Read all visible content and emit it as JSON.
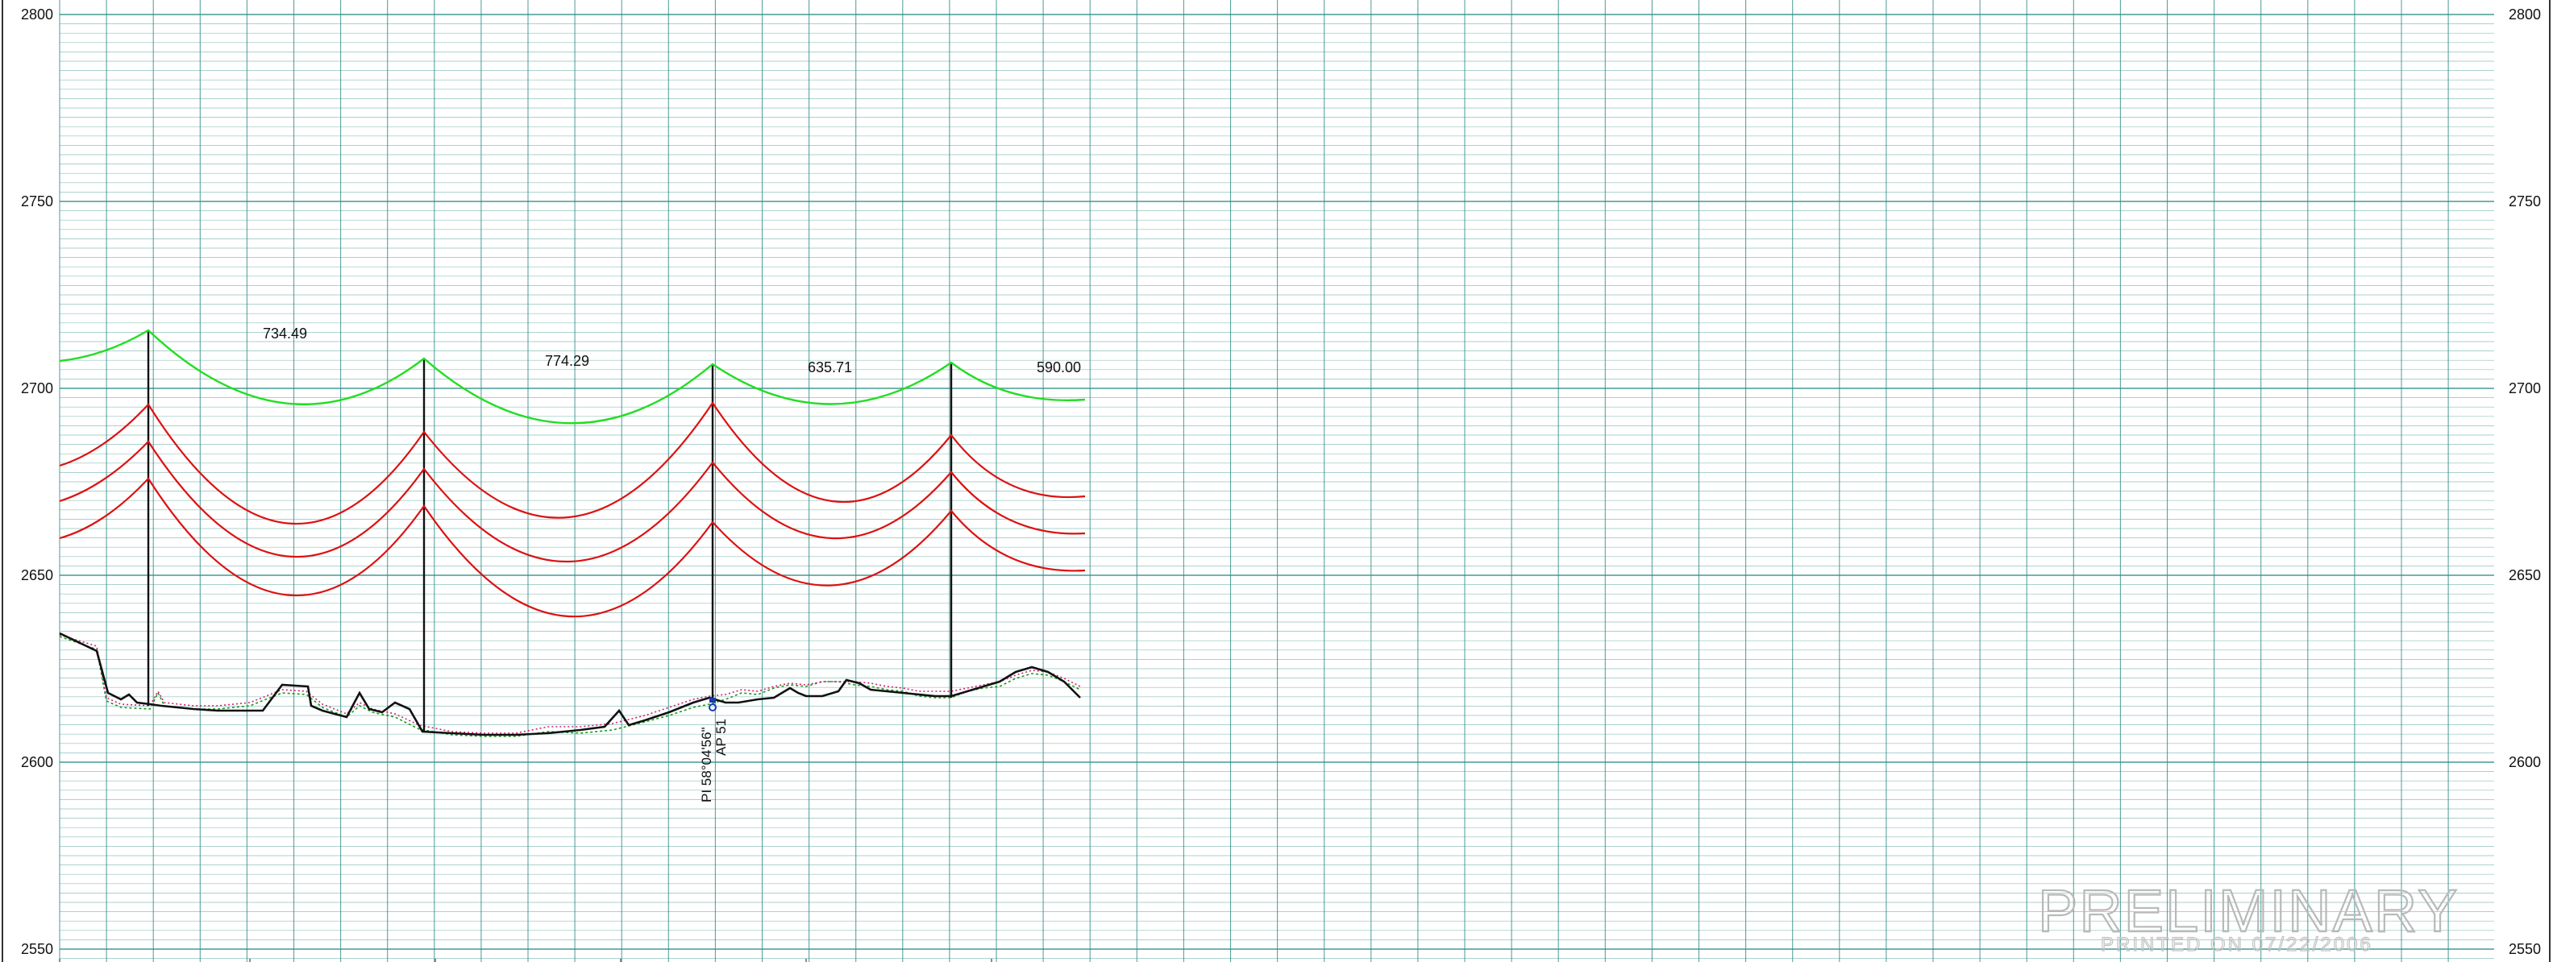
{
  "profile": {
    "elevations": [
      "2800",
      "2750",
      "2700",
      "2650",
      "2600",
      "2550"
    ],
    "spans": [
      "734.49",
      "774.29",
      "635.71",
      "590.00"
    ],
    "pi_note": {
      "line1": "PI 58°04'56\"",
      "line2": "AP 51"
    }
  },
  "stamp": {
    "title": "PRELIMINARY",
    "printed": "PRINTED ON  07/22/2006"
  },
  "colors": {
    "grid": "#2f8f86",
    "ground": "#111111",
    "conductor_top": "#22dd22",
    "conductor_lower": "#dd1111",
    "pole": "#111111",
    "stamp": "#b9b9b9"
  }
}
